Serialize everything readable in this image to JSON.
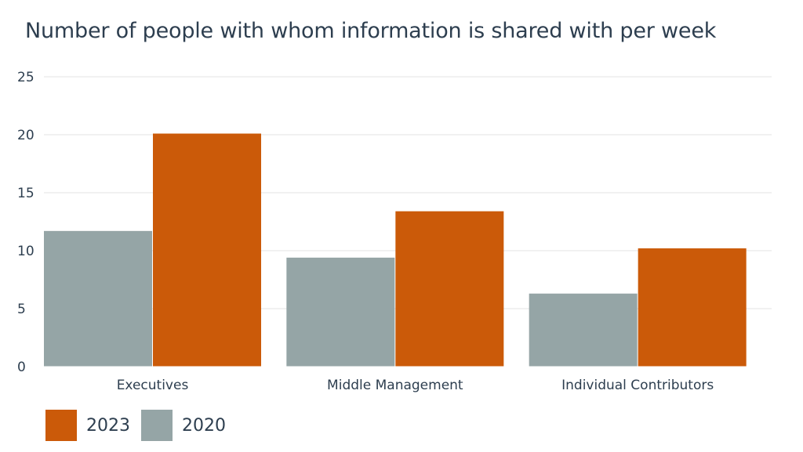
{
  "chart_data": {
    "type": "bar",
    "title": "Number of people with whom information is shared with per week",
    "categories": [
      "Executives",
      "Middle Management",
      "Individual Contributors"
    ],
    "series": [
      {
        "name": "2020",
        "color": "#95a5a6",
        "values": [
          11.7,
          9.4,
          6.3
        ]
      },
      {
        "name": "2023",
        "color": "#cb5a09",
        "values": [
          20.1,
          13.4,
          10.2
        ]
      }
    ],
    "ylim": [
      0,
      25
    ],
    "yticks": [
      0,
      5,
      10,
      15,
      20,
      25
    ],
    "grid": true,
    "legend": {
      "placement": "bottom-left",
      "items": [
        {
          "label": "2023",
          "color": "#cb5a09"
        },
        {
          "label": "2020",
          "color": "#95a5a6"
        }
      ]
    }
  }
}
